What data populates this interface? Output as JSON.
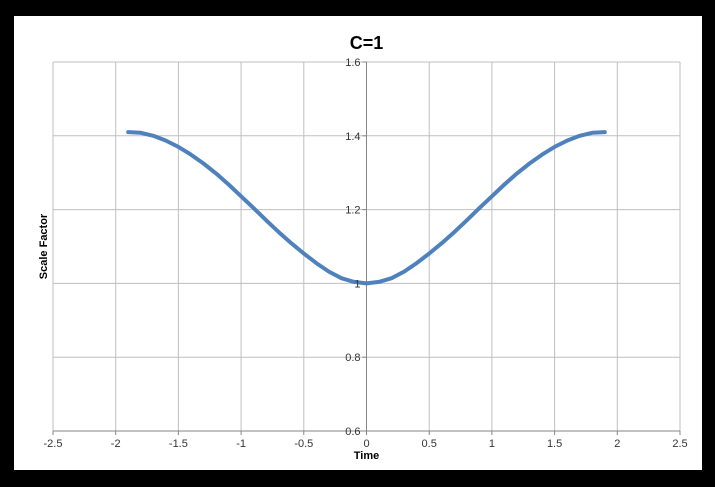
{
  "chart_data": {
    "type": "line",
    "title": "C=1",
    "xlabel": "Time",
    "ylabel": "Scale Factor",
    "xlim": [
      -2.5,
      2.5
    ],
    "ylim": [
      0.6,
      1.6
    ],
    "x_ticks": [
      -2.5,
      -2,
      -1.5,
      -1,
      -0.5,
      0,
      0.5,
      1,
      1.5,
      2,
      2.5
    ],
    "x_tick_labels": [
      "-2.5",
      "-2",
      "-1.5",
      "-1",
      "-0.5",
      "0",
      "0.5",
      "1",
      "1.5",
      "2",
      "2.5"
    ],
    "y_ticks": [
      0.6,
      0.8,
      1,
      1.2,
      1.4,
      1.6
    ],
    "y_tick_labels": [
      "0.6",
      "0.8",
      "1",
      "1.2",
      "1.4",
      "1.6"
    ],
    "grid": true,
    "legend": "none",
    "series": [
      {
        "color": "#4f81bd",
        "x": [
          -1.9,
          -1.8,
          -1.7,
          -1.6,
          -1.5,
          -1.4,
          -1.3,
          -1.2,
          -1.1,
          -1.0,
          -0.9,
          -0.8,
          -0.7,
          -0.6,
          -0.5,
          -0.4,
          -0.3,
          -0.2,
          -0.1,
          0,
          0.1,
          0.2,
          0.3,
          0.4,
          0.5,
          0.6,
          0.7,
          0.8,
          0.9,
          1.0,
          1.1,
          1.2,
          1.3,
          1.4,
          1.5,
          1.6,
          1.7,
          1.8,
          1.9
        ],
        "y": [
          1.41,
          1.408,
          1.4,
          1.387,
          1.37,
          1.349,
          1.325,
          1.298,
          1.268,
          1.236,
          1.204,
          1.171,
          1.139,
          1.109,
          1.081,
          1.055,
          1.032,
          1.014,
          1.004,
          1.0,
          1.004,
          1.014,
          1.032,
          1.055,
          1.081,
          1.109,
          1.139,
          1.171,
          1.204,
          1.236,
          1.268,
          1.298,
          1.325,
          1.349,
          1.37,
          1.387,
          1.4,
          1.408,
          1.41
        ]
      }
    ]
  }
}
